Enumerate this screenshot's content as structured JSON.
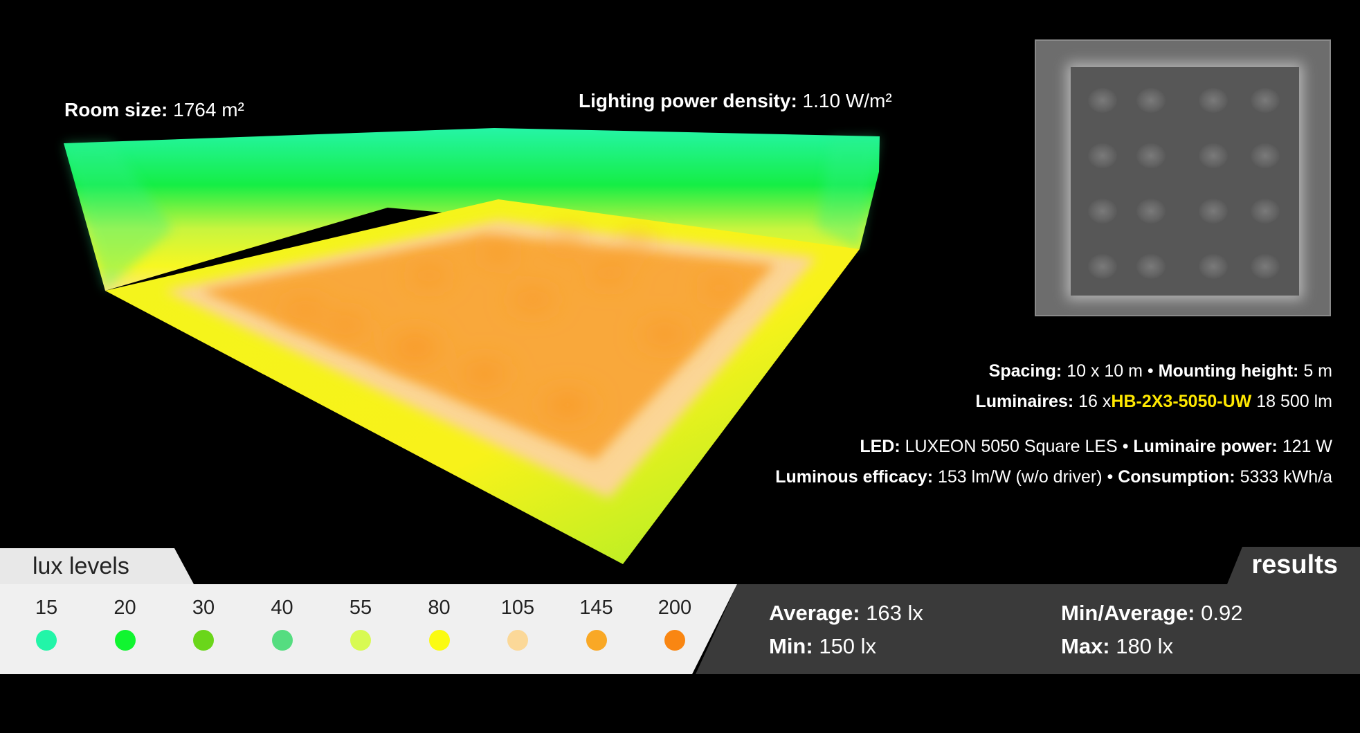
{
  "scene": {
    "room_size_label": "Room size:",
    "room_size_value": "1764 m²",
    "lpd_label": "Lighting power density:",
    "lpd_value": "1.10 W/m²"
  },
  "specs": {
    "spacing_label": "Spacing:",
    "spacing_value": "10 x 10 m",
    "mounting_label": "Mounting height:",
    "mounting_value": "5 m",
    "luminaires_label": "Luminaires:",
    "luminaires_count": "16 x",
    "luminaires_model": "HB-2X3-5050-UW",
    "luminaires_flux": "18 500 lm",
    "led_label": "LED:",
    "led_value": "LUXEON 5050 Square LES",
    "power_label": "Luminaire power:",
    "power_value": "121 W",
    "efficacy_label": "Luminous efficacy:",
    "efficacy_value": "153 lm/W (w/o driver)",
    "consumption_label": "Consumption:",
    "consumption_value": "5333 kWh/a",
    "separator": "•"
  },
  "legend": {
    "title": "lux levels",
    "levels": [
      {
        "value": "15",
        "color": "#22f5a8"
      },
      {
        "value": "20",
        "color": "#10f530"
      },
      {
        "value": "30",
        "color": "#6ad61a"
      },
      {
        "value": "40",
        "color": "#55dd80"
      },
      {
        "value": "55",
        "color": "#d8fa52"
      },
      {
        "value": "80",
        "color": "#fbfb12"
      },
      {
        "value": "105",
        "color": "#fbd898"
      },
      {
        "value": "145",
        "color": "#f9a825"
      },
      {
        "value": "200",
        "color": "#f98612"
      }
    ]
  },
  "results": {
    "title": "results",
    "average_label": "Average:",
    "average_value": "163 lx",
    "min_label": "Min:",
    "min_value": "150 lx",
    "ratio_label": "Min/Average:",
    "ratio_value": "0.92",
    "max_label": "Max:",
    "max_value": "180 lx"
  }
}
